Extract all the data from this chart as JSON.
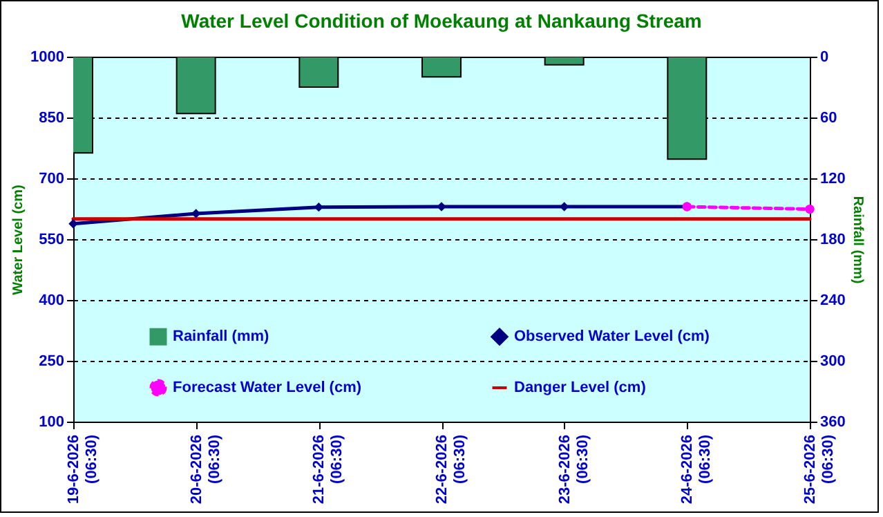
{
  "chart_data": {
    "type": "line",
    "title": "Water Level Condition of Moekaung at Nankaung Stream",
    "ylabel": "Water Level (cm)",
    "y2label": "Rainfall (mm)",
    "categories": [
      "19-6-2026 (06:30)",
      "20-6-2026 (06:30)",
      "21-6-2026 (06:30)",
      "22-6-2026 (06:30)",
      "23-6-2026 (06:30)",
      "24-6-2026 (06:30)",
      "25-6-2026 (06:30)"
    ],
    "series": [
      {
        "name": "Rainfall (mm)",
        "type": "bar",
        "axis": "y2",
        "color": "#339966",
        "values": [
          95,
          56,
          30,
          20,
          8,
          101,
          null
        ]
      },
      {
        "name": "Observed Water Level (cm)",
        "color": "#000080",
        "marker": "diamond",
        "line_style": "solid",
        "values": [
          588,
          613,
          629,
          630,
          630,
          630,
          null
        ]
      },
      {
        "name": "Forecast Water Level (cm)",
        "color": "#ff00ff",
        "marker": "circle",
        "line_style": "dashed",
        "values": [
          null,
          null,
          null,
          null,
          null,
          630,
          624
        ]
      },
      {
        "name": "Danger Level (cm)",
        "color": "#cc0000",
        "marker": "none",
        "line_style": "solid",
        "values": [
          600,
          600,
          600,
          600,
          600,
          600,
          600
        ]
      }
    ],
    "ylim": [
      100,
      1000
    ],
    "yticks": [
      100,
      250,
      400,
      550,
      700,
      850,
      1000
    ],
    "y2lim": [
      360,
      0
    ],
    "y2ticks": [
      0,
      60,
      120,
      180,
      240,
      300,
      360
    ],
    "grid": "y",
    "legend": "bottom"
  }
}
